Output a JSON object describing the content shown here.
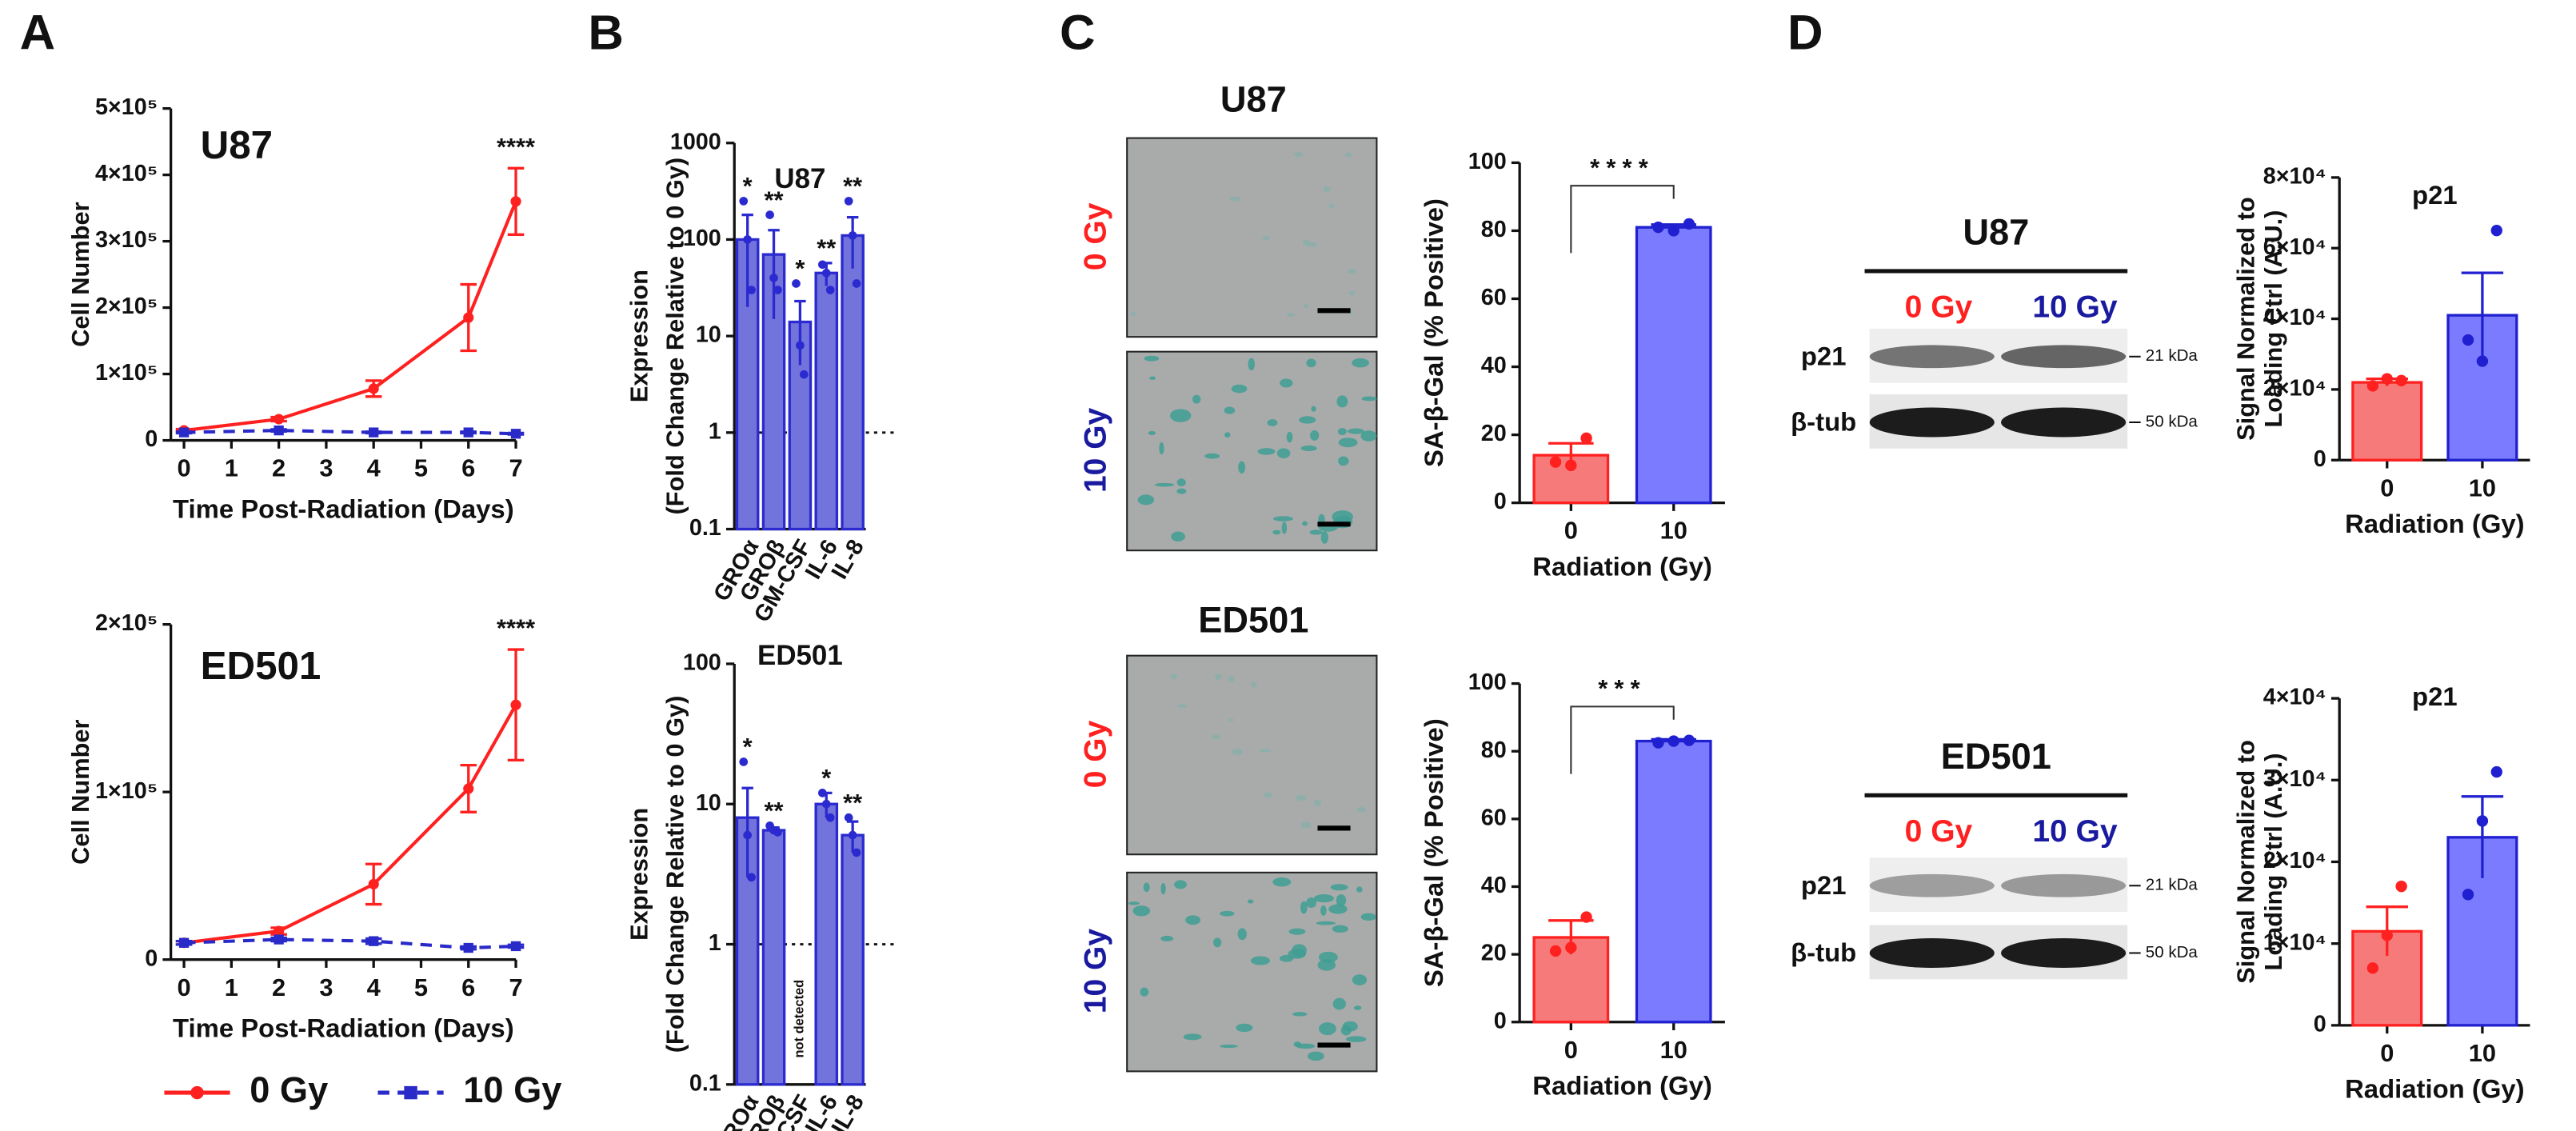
{
  "panels": [
    "A",
    "B",
    "C",
    "D"
  ],
  "microscopy": [
    {
      "cell": "U87",
      "conditions": [
        "0 Gy",
        "10 Gy"
      ]
    },
    {
      "cell": "ED501",
      "conditions": [
        "0 Gy",
        "10 Gy"
      ]
    }
  ],
  "blots": [
    {
      "cell": "U87",
      "conditions": [
        "0 Gy",
        "10 Gy"
      ],
      "bands": [
        "p21",
        "β-tub"
      ],
      "markers": [
        "21 kDa",
        "50 kDa"
      ]
    },
    {
      "cell": "ED501",
      "conditions": [
        "0 Gy",
        "10 Gy"
      ],
      "bands": [
        "p21",
        "β-tub"
      ],
      "markers": [
        "21 kDa",
        "50 kDa"
      ]
    }
  ],
  "chart_data": [
    {
      "type": "line",
      "title": "U87",
      "xlabel": "Time Post-Radiation (Days)",
      "ylabel": "Cell Number",
      "x": [
        0,
        2,
        4,
        6,
        7
      ],
      "xlim": [
        0,
        7
      ],
      "xticks": [
        0,
        1,
        2,
        3,
        4,
        5,
        6,
        7
      ],
      "ylim": [
        0,
        500000
      ],
      "yticks": [
        0,
        {
          "value": 100000,
          "label": "1×10⁵"
        },
        {
          "value": 200000,
          "label": "2×10⁵"
        },
        {
          "value": 300000,
          "label": "3×10⁵"
        },
        {
          "value": 400000,
          "label": "4×10⁵"
        },
        {
          "value": 500000,
          "label": "5×10⁵"
        }
      ],
      "series": [
        {
          "name": "0 Gy",
          "color": "#ff2020",
          "linestyle": "solid",
          "marker": "circle",
          "values": [
            15000,
            32000,
            78000,
            185000,
            360000
          ],
          "errors": [
            2000,
            3000,
            12000,
            50000,
            50000
          ]
        },
        {
          "name": "10 Gy",
          "color": "#2a2ac8",
          "linestyle": "dashed",
          "marker": "square",
          "values": [
            12000,
            15000,
            12000,
            12000,
            10000
          ],
          "errors": [
            1000,
            1500,
            1000,
            1000,
            1000
          ]
        }
      ],
      "annotation": "****"
    },
    {
      "type": "line",
      "title": "ED501",
      "xlabel": "Time Post-Radiation (Days)",
      "ylabel": "Cell Number",
      "x": [
        0,
        2,
        4,
        6,
        7
      ],
      "xlim": [
        0,
        7
      ],
      "xticks": [
        0,
        1,
        2,
        3,
        4,
        5,
        6,
        7
      ],
      "ylim": [
        0,
        200000
      ],
      "yticks": [
        0,
        {
          "value": 100000,
          "label": "1×10⁵"
        },
        {
          "value": 200000,
          "label": "2×10⁵"
        }
      ],
      "series": [
        {
          "name": "0 Gy",
          "color": "#ff2020",
          "linestyle": "solid",
          "marker": "circle",
          "values": [
            10000,
            17000,
            45000,
            102000,
            152000
          ],
          "errors": [
            1000,
            2000,
            12000,
            14000,
            33000
          ]
        },
        {
          "name": "10 Gy",
          "color": "#2a2ac8",
          "linestyle": "dashed",
          "marker": "square",
          "values": [
            10000,
            12000,
            11000,
            7000,
            8000
          ],
          "errors": [
            1000,
            1000,
            1500,
            800,
            800
          ]
        }
      ],
      "annotation": "****",
      "legend": "below"
    },
    {
      "type": "bar",
      "title": "U87",
      "ylabel": [
        "Expression",
        "(Fold Change Relative to 0 Gy)"
      ],
      "categories": [
        "GROα",
        "GROβ",
        "GM-CSF",
        "IL-6",
        "IL-8"
      ],
      "values": [
        100,
        70,
        14,
        45,
        110
      ],
      "errors": [
        80,
        55,
        9,
        12,
        60
      ],
      "points": [
        [
          250,
          100,
          30
        ],
        [
          180,
          40,
          30
        ],
        [
          35,
          8,
          4
        ],
        [
          55,
          45,
          30
        ],
        [
          250,
          110,
          35
        ]
      ],
      "color": "#7373dc",
      "edgecolor": "#2a2ad0",
      "log": true,
      "ylim": [
        0.1,
        1000
      ],
      "yticks": [
        0.1,
        1,
        10,
        100,
        1000
      ],
      "reference_line": 1,
      "annotations": [
        "*",
        "**",
        "*",
        "**",
        "**"
      ]
    },
    {
      "type": "bar",
      "title": "ED501",
      "ylabel": [
        "Expression",
        "(Fold Change Relative to 0 Gy)"
      ],
      "categories": [
        "GROα",
        "GROβ",
        "GM-CSF",
        "IL-6",
        "IL-8"
      ],
      "values": [
        8,
        6.5,
        null,
        10,
        6
      ],
      "errors": [
        5,
        0.3,
        null,
        2,
        1.5
      ],
      "points": [
        [
          20,
          6,
          3
        ],
        [
          7,
          6.5,
          6.3
        ],
        null,
        [
          12,
          10,
          8
        ],
        [
          8,
          6,
          4.5
        ]
      ],
      "color": "#7373dc",
      "edgecolor": "#2a2ad0",
      "log": true,
      "ylim": [
        0.1,
        100
      ],
      "yticks": [
        0.1,
        1,
        10,
        100
      ],
      "reference_line": 1,
      "annotations": [
        "*",
        "**",
        null,
        "*",
        "**"
      ],
      "notes": [
        null,
        null,
        "not detected",
        null,
        null
      ]
    },
    {
      "type": "bar",
      "xlabel": "Radiation (Gy)",
      "ylabel": [
        "SA-β-Gal (% Positive)"
      ],
      "categories": [
        "0",
        "10"
      ],
      "values": [
        14,
        81
      ],
      "errors": [
        3.5,
        0.8
      ],
      "points": [
        [
          12,
          11,
          19
        ],
        [
          81,
          80,
          82
        ]
      ],
      "colors": [
        "#f77a7a",
        "#7b7bff"
      ],
      "edgecolors": [
        "#ff2020",
        "#2020d0"
      ],
      "ylim": [
        0,
        100
      ],
      "yticks": [
        0,
        20,
        40,
        60,
        80,
        100
      ],
      "significance": "****"
    },
    {
      "type": "bar",
      "xlabel": "Radiation (Gy)",
      "ylabel": [
        "SA-β-Gal (% Positive)"
      ],
      "categories": [
        "0",
        "10"
      ],
      "values": [
        25,
        83
      ],
      "errors": [
        5,
        0.5
      ],
      "points": [
        [
          21,
          22,
          31
        ],
        [
          82.5,
          83,
          83.2
        ]
      ],
      "colors": [
        "#f77a7a",
        "#7b7bff"
      ],
      "edgecolors": [
        "#ff2020",
        "#2020d0"
      ],
      "ylim": [
        0,
        100
      ],
      "yticks": [
        0,
        20,
        40,
        60,
        80,
        100
      ],
      "significance": "***"
    },
    {
      "type": "bar",
      "title": "p21",
      "xlabel": "Radiation (Gy)",
      "ylabel": [
        "Signal Normalized to",
        "Loading Ctrl (A.U.)"
      ],
      "categories": [
        "0",
        "10"
      ],
      "values": [
        22000,
        41000
      ],
      "errors": [
        1000,
        12000
      ],
      "points": [
        [
          21000,
          23000,
          22500
        ],
        [
          34000,
          28000,
          65000
        ]
      ],
      "colors": [
        "#f77a7a",
        "#7b7bff"
      ],
      "edgecolors": [
        "#ff2020",
        "#2020d0"
      ],
      "ylim": [
        0,
        80000
      ],
      "yticks": [
        0,
        {
          "value": 20000,
          "label": "2×10⁴"
        },
        {
          "value": 40000,
          "label": "4×10⁴"
        },
        {
          "value": 60000,
          "label": "6×10⁴"
        },
        {
          "value": 80000,
          "label": "8×10⁴"
        }
      ]
    },
    {
      "type": "bar",
      "title": "p21",
      "xlabel": "Radiation (Gy)",
      "ylabel": [
        "Signal Normalized to",
        "Loading Ctrl (A.U.)"
      ],
      "categories": [
        "0",
        "10"
      ],
      "values": [
        11500,
        23000
      ],
      "errors": [
        3000,
        5000
      ],
      "points": [
        [
          7000,
          11000,
          17000
        ],
        [
          16000,
          25000,
          31000
        ]
      ],
      "colors": [
        "#f77a7a",
        "#7b7bff"
      ],
      "edgecolors": [
        "#ff2020",
        "#2020d0"
      ],
      "ylim": [
        0,
        40000
      ],
      "yticks": [
        0,
        {
          "value": 10000,
          "label": "1×10⁴"
        },
        {
          "value": 20000,
          "label": "2×10⁴"
        },
        {
          "value": 30000,
          "label": "3×10⁴"
        },
        {
          "value": 40000,
          "label": "4×10⁴"
        }
      ]
    }
  ]
}
